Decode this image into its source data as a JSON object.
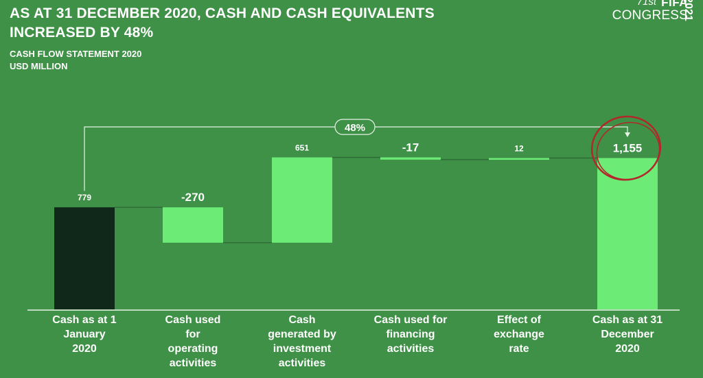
{
  "title": "AS AT 31 DECEMBER 2020, CASH AND CASH EQUIVALENTS INCREASED BY 48%",
  "subtitle_line1": "CASH FLOW STATEMENT 2020",
  "subtitle_line2": "USD MILLION",
  "logo": {
    "edition": "71st",
    "brand": "FIFA",
    "event": "CONGRESS",
    "year": "2021"
  },
  "colors": {
    "background": "#3f9147",
    "start_bar": "#10281a",
    "bar": "#6cec77",
    "connector": "#2f6b37",
    "circle": "#b3262c"
  },
  "chart_data": {
    "type": "waterfall",
    "categories": [
      "Cash as at 1 January 2020",
      "Cash used for operating activities",
      "Cash generated by investment activities",
      "Cash used for financing activities",
      "Effect of exchange rate",
      "Cash as at 31 December 2020"
    ],
    "values": [
      779,
      -270,
      651,
      -17,
      12,
      1155
    ],
    "kinds": [
      "total",
      "delta",
      "delta",
      "delta",
      "delta",
      "total"
    ],
    "value_labels": [
      "779",
      "-270",
      "651",
      "-17",
      "12",
      "1,155"
    ],
    "change_annotation": "48%",
    "highlighted": "Cash as at 31 December 2020",
    "ylim": [
      0,
      1300
    ]
  }
}
